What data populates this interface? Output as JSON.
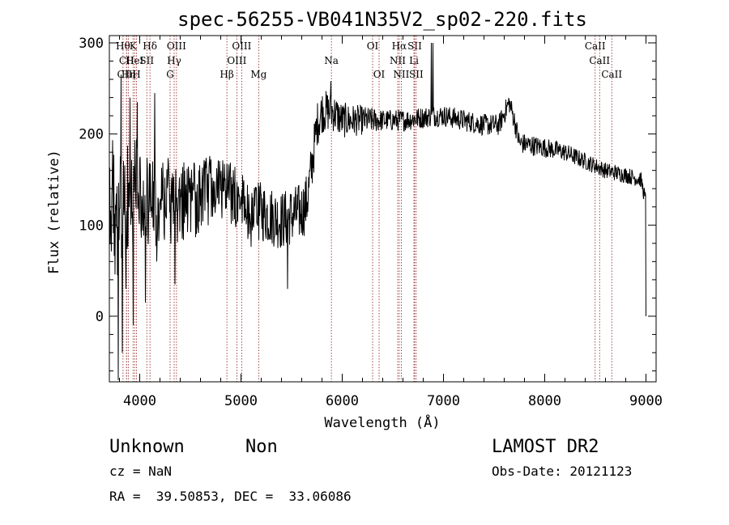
{
  "chart_data": {
    "type": "line",
    "title": "spec-56255-VB041N35V2_sp02-220.fits",
    "xlabel": "Wavelength (Å)",
    "ylabel": "Flux (relative)",
    "xlim": [
      3700,
      9100
    ],
    "ylim": [
      -72,
      308
    ],
    "x_ticks": [
      {
        "value": 4000,
        "label": "4000"
      },
      {
        "value": 5000,
        "label": "5000"
      },
      {
        "value": 6000,
        "label": "6000"
      },
      {
        "value": 7000,
        "label": "7000"
      },
      {
        "value": 8000,
        "label": "8000"
      },
      {
        "value": 9000,
        "label": "9000"
      }
    ],
    "y_ticks": [
      {
        "value": 0,
        "label": "0"
      },
      {
        "value": 100,
        "label": "100"
      },
      {
        "value": 200,
        "label": "200"
      },
      {
        "value": 300,
        "label": "300"
      }
    ],
    "grid": false,
    "line_color": "#000000",
    "marker_color": "#8b1a1a",
    "series": [
      {
        "anchors": [
          [
            3700,
            110
          ],
          [
            3730,
            150
          ],
          [
            3760,
            100
          ],
          [
            3800,
            120
          ],
          [
            3850,
            130
          ],
          [
            3900,
            120
          ],
          [
            3950,
            140
          ],
          [
            4000,
            130
          ],
          [
            4100,
            120
          ],
          [
            4200,
            130
          ],
          [
            4300,
            125
          ],
          [
            4400,
            125
          ],
          [
            4500,
            125
          ],
          [
            4600,
            130
          ],
          [
            4700,
            140
          ],
          [
            4800,
            140
          ],
          [
            4900,
            135
          ],
          [
            5000,
            125
          ],
          [
            5100,
            110
          ],
          [
            5200,
            115
          ],
          [
            5300,
            110
          ],
          [
            5400,
            105
          ],
          [
            5500,
            110
          ],
          [
            5600,
            115
          ],
          [
            5650,
            125
          ],
          [
            5700,
            165
          ],
          [
            5750,
            210
          ],
          [
            5800,
            225
          ],
          [
            5900,
            225
          ],
          [
            6000,
            215
          ],
          [
            6200,
            215
          ],
          [
            6400,
            215
          ],
          [
            6600,
            215
          ],
          [
            6800,
            218
          ],
          [
            6900,
            220
          ],
          [
            7000,
            220
          ],
          [
            7200,
            215
          ],
          [
            7400,
            210
          ],
          [
            7550,
            210
          ],
          [
            7650,
            235
          ],
          [
            7700,
            215
          ],
          [
            7750,
            190
          ],
          [
            8000,
            185
          ],
          [
            8200,
            180
          ],
          [
            8400,
            170
          ],
          [
            8600,
            160
          ],
          [
            8800,
            155
          ],
          [
            8950,
            150
          ],
          [
            9000,
            125
          ]
        ],
        "noise": [
          [
            3700,
            70
          ],
          [
            4400,
            45
          ],
          [
            4800,
            35
          ],
          [
            5650,
            32
          ],
          [
            5750,
            25
          ],
          [
            6400,
            12
          ],
          [
            7000,
            12
          ],
          [
            7700,
            12
          ],
          [
            8500,
            9
          ],
          [
            9000,
            9
          ]
        ],
        "spikes": [
          {
            "x": 3790,
            "y": -70
          },
          {
            "x": 3815,
            "y": 265
          },
          {
            "x": 3830,
            "y": -40
          },
          {
            "x": 3865,
            "y": 30
          },
          {
            "x": 3905,
            "y": 240
          },
          {
            "x": 3935,
            "y": -10
          },
          {
            "x": 3975,
            "y": 235
          },
          {
            "x": 4055,
            "y": 15
          },
          {
            "x": 4150,
            "y": 245
          },
          {
            "x": 4170,
            "y": 60
          },
          {
            "x": 4350,
            "y": 35
          },
          {
            "x": 5460,
            "y": 30
          },
          {
            "x": 5890,
            "y": 258
          },
          {
            "x": 6880,
            "y": 300
          },
          {
            "x": 6895,
            "y": 300
          },
          {
            "x": 9000,
            "y": 0
          }
        ]
      }
    ],
    "line_labels": [
      {
        "x": 3835,
        "label": "Hθ",
        "row": 0
      },
      {
        "x": 3870,
        "label": "CII",
        "row": 1
      },
      {
        "x": 3870,
        "label": "CIII",
        "row": 2
      },
      {
        "x": 3889,
        "label": "Hη",
        "row": 2
      },
      {
        "x": 3934,
        "label": "K",
        "row": 0
      },
      {
        "x": 3950,
        "label": "HeI",
        "row": 1
      },
      {
        "x": 3968,
        "label": "H",
        "row": 2
      },
      {
        "x": 4070,
        "label": "SII",
        "row": 1
      },
      {
        "x": 4101,
        "label": "Hδ",
        "row": 0
      },
      {
        "x": 4300,
        "label": "G",
        "row": 2
      },
      {
        "x": 4340,
        "label": "Hγ",
        "row": 1
      },
      {
        "x": 4363,
        "label": "OIII",
        "row": 0
      },
      {
        "x": 4861,
        "label": "Hβ",
        "row": 2
      },
      {
        "x": 4959,
        "label": "OIII",
        "row": 1
      },
      {
        "x": 5007,
        "label": "OIII",
        "row": 0
      },
      {
        "x": 5175,
        "label": "Mg",
        "row": 2
      },
      {
        "x": 5893,
        "label": "Na",
        "row": 1
      },
      {
        "x": 6300,
        "label": "OI",
        "row": 0
      },
      {
        "x": 6364,
        "label": "OI",
        "row": 2
      },
      {
        "x": 6548,
        "label": "NII",
        "row": 1
      },
      {
        "x": 6563,
        "label": "Hα",
        "row": 0
      },
      {
        "x": 6583,
        "label": "NII",
        "row": 2
      },
      {
        "x": 6708,
        "label": "Li",
        "row": 1
      },
      {
        "x": 6716,
        "label": "SII",
        "row": 0
      },
      {
        "x": 6731,
        "label": "SII",
        "row": 2
      },
      {
        "x": 8498,
        "label": "CaII",
        "row": 0
      },
      {
        "x": 8542,
        "label": "CaII",
        "row": 1
      },
      {
        "x": 8662,
        "label": "CaII",
        "row": 2
      }
    ]
  },
  "info": {
    "object_class": "Unknown",
    "subclass": "Non",
    "redshift": "cz = NaN",
    "coords": "RA =  39.50853, DEC =  33.06086",
    "survey": "LAMOST DR2",
    "obs_date": "Obs-Date: 20121123"
  }
}
